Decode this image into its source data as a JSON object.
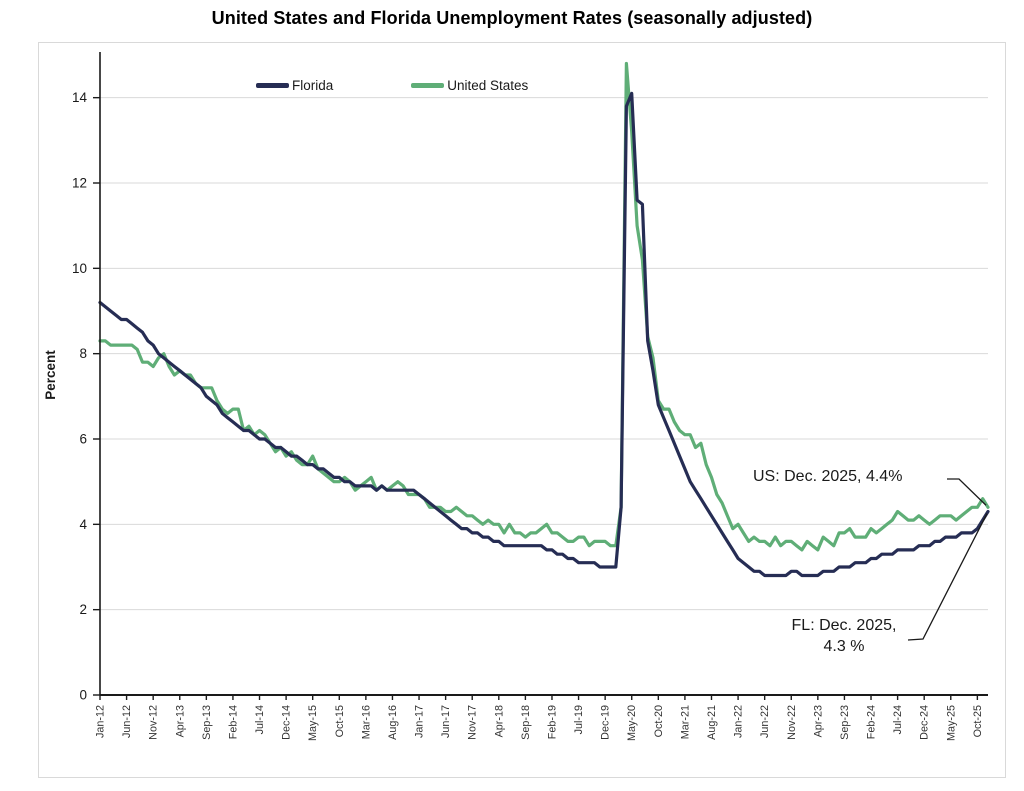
{
  "title": "United States and Florida Unemployment Rates (seasonally adjusted)",
  "annotations": {
    "us_label": "US: Dec. 2025, 4.4%",
    "fl_line1": "FL: Dec. 2025,",
    "fl_line2": "4.3 %"
  },
  "chart_data": {
    "type": "line",
    "title": "United States and Florida Unemployment Rates (seasonally adjusted)",
    "xlabel": "",
    "ylabel": "Percent",
    "ylim": [
      0,
      15
    ],
    "yticks": [
      0,
      2,
      4,
      6,
      8,
      10,
      12,
      14
    ],
    "grid": "horizontal",
    "legend_position": "top-inside",
    "axis_color": "#1a1a1a",
    "grid_color": "#d9d9d9",
    "x_start": "Jan-2012",
    "x_end": "Dec-2025",
    "x_tick_every_months": 5,
    "x_tick_labels": [
      "Jan-12",
      "Jun-12",
      "Nov-12",
      "Apr-13",
      "Sep-13",
      "Feb-14",
      "Jul-14",
      "Dec-14",
      "May-15",
      "Oct-15",
      "Mar-16",
      "Aug-16",
      "Jan-17",
      "Jun-17",
      "Nov-17",
      "Apr-18",
      "Sep-18",
      "Feb-19",
      "Jul-19",
      "Dec-19",
      "May-20",
      "Oct-20",
      "Mar-21",
      "Aug-21",
      "Jan-22",
      "Jun-22",
      "Nov-22",
      "Apr-23",
      "Sep-23",
      "Feb-24",
      "Jul-24",
      "Dec-24",
      "May-25",
      "Oct-25"
    ],
    "series": [
      {
        "name": "United States",
        "color": "#5fae77",
        "final_point": {
          "label": "Dec. 2025",
          "value": 4.4
        },
        "values": [
          8.3,
          8.3,
          8.2,
          8.2,
          8.2,
          8.2,
          8.2,
          8.1,
          7.8,
          7.8,
          7.7,
          7.9,
          8.0,
          7.7,
          7.5,
          7.6,
          7.5,
          7.5,
          7.3,
          7.2,
          7.2,
          7.2,
          6.9,
          6.7,
          6.6,
          6.7,
          6.7,
          6.2,
          6.3,
          6.1,
          6.2,
          6.1,
          5.9,
          5.7,
          5.8,
          5.6,
          5.7,
          5.5,
          5.4,
          5.4,
          5.6,
          5.3,
          5.2,
          5.1,
          5.0,
          5.0,
          5.1,
          5.0,
          4.8,
          4.9,
          5.0,
          5.1,
          4.8,
          4.9,
          4.8,
          4.9,
          5.0,
          4.9,
          4.7,
          4.7,
          4.7,
          4.6,
          4.4,
          4.4,
          4.4,
          4.3,
          4.3,
          4.4,
          4.3,
          4.2,
          4.2,
          4.1,
          4.0,
          4.1,
          4.0,
          4.0,
          3.8,
          4.0,
          3.8,
          3.8,
          3.7,
          3.8,
          3.8,
          3.9,
          4.0,
          3.8,
          3.8,
          3.7,
          3.6,
          3.6,
          3.7,
          3.7,
          3.5,
          3.6,
          3.6,
          3.6,
          3.5,
          3.5,
          4.4,
          14.8,
          13.2,
          11.0,
          10.2,
          8.4,
          7.9,
          6.9,
          6.7,
          6.7,
          6.4,
          6.2,
          6.1,
          6.1,
          5.8,
          5.9,
          5.4,
          5.1,
          4.7,
          4.5,
          4.2,
          3.9,
          4.0,
          3.8,
          3.6,
          3.7,
          3.6,
          3.6,
          3.5,
          3.7,
          3.5,
          3.6,
          3.6,
          3.5,
          3.4,
          3.6,
          3.5,
          3.4,
          3.7,
          3.6,
          3.5,
          3.8,
          3.8,
          3.9,
          3.7,
          3.7,
          3.7,
          3.9,
          3.8,
          3.9,
          4.0,
          4.1,
          4.3,
          4.2,
          4.1,
          4.1,
          4.2,
          4.1,
          4.0,
          4.1,
          4.2,
          4.2,
          4.2,
          4.1,
          4.2,
          4.3,
          4.4,
          4.4,
          4.6,
          4.4
        ]
      },
      {
        "name": "Florida",
        "color": "#262d54",
        "final_point": {
          "label": "Dec. 2025",
          "value": 4.3
        },
        "values": [
          9.2,
          9.1,
          9.0,
          8.9,
          8.8,
          8.8,
          8.7,
          8.6,
          8.5,
          8.3,
          8.2,
          8.0,
          7.9,
          7.8,
          7.7,
          7.6,
          7.5,
          7.4,
          7.3,
          7.2,
          7.0,
          6.9,
          6.8,
          6.6,
          6.5,
          6.4,
          6.3,
          6.2,
          6.2,
          6.1,
          6.0,
          6.0,
          5.9,
          5.8,
          5.8,
          5.7,
          5.6,
          5.6,
          5.5,
          5.4,
          5.4,
          5.3,
          5.3,
          5.2,
          5.1,
          5.1,
          5.0,
          5.0,
          4.9,
          4.9,
          4.9,
          4.9,
          4.8,
          4.9,
          4.8,
          4.8,
          4.8,
          4.8,
          4.8,
          4.8,
          4.7,
          4.6,
          4.5,
          4.4,
          4.3,
          4.2,
          4.1,
          4.0,
          3.9,
          3.9,
          3.8,
          3.8,
          3.7,
          3.7,
          3.6,
          3.6,
          3.5,
          3.5,
          3.5,
          3.5,
          3.5,
          3.5,
          3.5,
          3.5,
          3.4,
          3.4,
          3.3,
          3.3,
          3.2,
          3.2,
          3.1,
          3.1,
          3.1,
          3.1,
          3.0,
          3.0,
          3.0,
          3.0,
          4.4,
          13.8,
          14.1,
          11.6,
          11.5,
          8.3,
          7.6,
          6.8,
          6.5,
          6.2,
          5.9,
          5.6,
          5.3,
          5.0,
          4.8,
          4.6,
          4.4,
          4.2,
          4.0,
          3.8,
          3.6,
          3.4,
          3.2,
          3.1,
          3.0,
          2.9,
          2.9,
          2.8,
          2.8,
          2.8,
          2.8,
          2.8,
          2.9,
          2.9,
          2.8,
          2.8,
          2.8,
          2.8,
          2.9,
          2.9,
          2.9,
          3.0,
          3.0,
          3.0,
          3.1,
          3.1,
          3.1,
          3.2,
          3.2,
          3.3,
          3.3,
          3.3,
          3.4,
          3.4,
          3.4,
          3.4,
          3.5,
          3.5,
          3.5,
          3.6,
          3.6,
          3.7,
          3.7,
          3.7,
          3.8,
          3.8,
          3.8,
          3.9,
          4.1,
          4.3
        ]
      }
    ]
  }
}
